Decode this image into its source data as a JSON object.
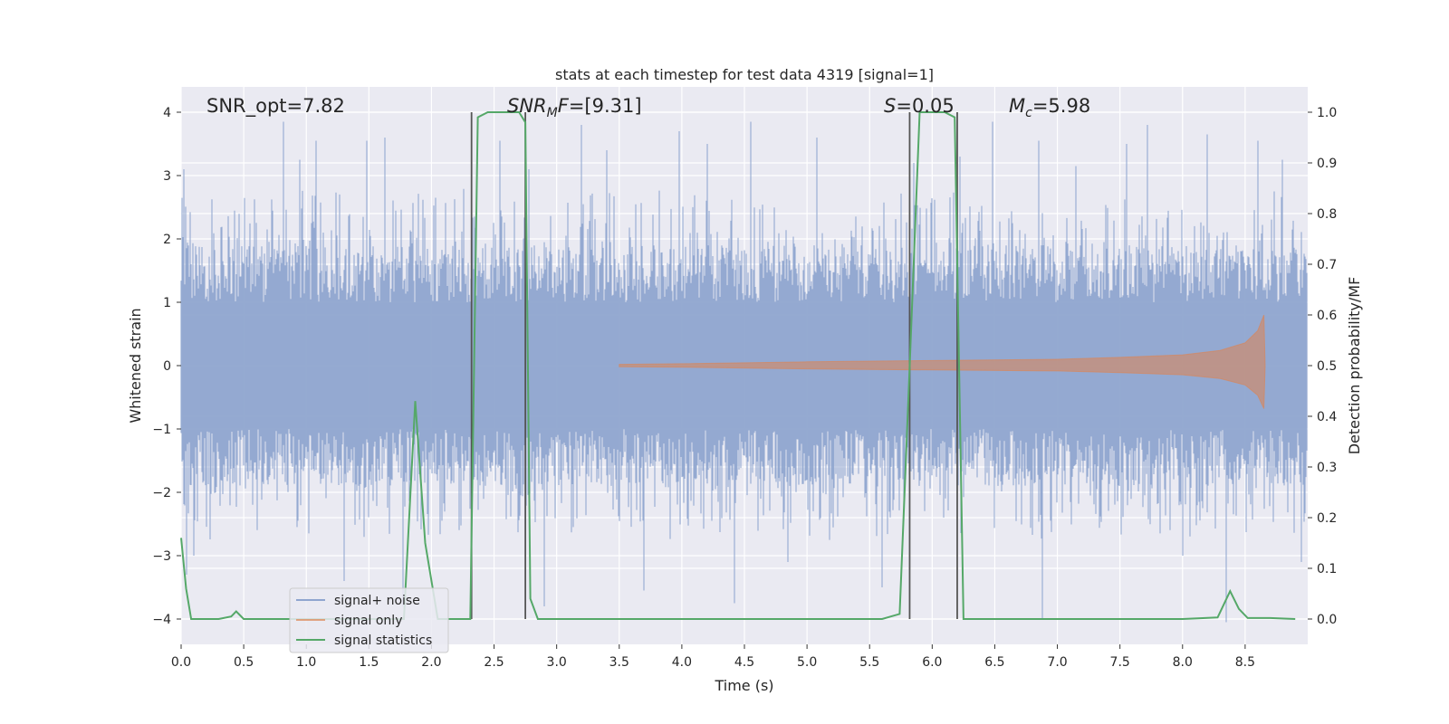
{
  "chart_data": {
    "type": "line",
    "title": "stats at each timestep for test data 4319 [signal=1]",
    "xlabel": "Time (s)",
    "ylabel": "Whitened strain",
    "ylabel_right": "Detection probability/MF",
    "xlim": [
      0.0,
      9.0
    ],
    "ylim": [
      -4.4,
      4.4
    ],
    "ylim_right": [
      -0.05,
      1.05
    ],
    "x_ticks": [
      "0.0",
      "0.5",
      "1.0",
      "1.5",
      "2.0",
      "2.5",
      "3.0",
      "3.5",
      "4.0",
      "4.5",
      "5.0",
      "5.5",
      "6.0",
      "6.5",
      "7.0",
      "7.5",
      "8.0",
      "8.5"
    ],
    "y_ticks": [
      "4",
      "3",
      "2",
      "1",
      "0",
      "−1",
      "−2",
      "−3",
      "−4"
    ],
    "y_ticks_right": [
      "1.0",
      "0.9",
      "0.8",
      "0.7",
      "0.6",
      "0.5",
      "0.4",
      "0.3",
      "0.2",
      "0.1",
      "0.0"
    ],
    "grid": true,
    "legend_position": "lower-left",
    "legend": [
      "signal+ noise",
      "signal only",
      "signal statistics"
    ],
    "colors": {
      "noise": "#8fa5cf",
      "signal": "#dd8452",
      "stats": "#55a868",
      "vline": "#555555",
      "plot_bg": "#eaeaf2",
      "grid": "#ffffff"
    },
    "annotations": {
      "snr_opt": "SNR_opt=7.82",
      "snr_mf_italic": "SNR",
      "snr_mf_sub": "M",
      "snr_mf_f": "F",
      "snr_mf_value": "=[9.31]",
      "s_italic": "S",
      "s_value": "=0.05",
      "mc_italic": "M",
      "mc_sub": "c",
      "mc_value": "=5.98"
    },
    "vertical_lines_x": [
      2.32,
      2.75,
      5.82,
      6.2
    ],
    "vertical_lines_range": [
      0.0,
      1.0
    ],
    "signal_statistics": {
      "x": [
        0.0,
        0.04,
        0.08,
        0.15,
        0.3,
        0.4,
        0.44,
        0.5,
        0.8,
        1.2,
        1.6,
        1.78,
        1.87,
        1.95,
        2.05,
        2.25,
        2.31,
        2.37,
        2.45,
        2.6,
        2.7,
        2.75,
        2.79,
        2.85,
        3.2,
        4.0,
        5.0,
        5.6,
        5.74,
        5.82,
        5.9,
        6.1,
        6.18,
        6.25,
        6.32,
        7.0,
        8.0,
        8.28,
        8.38,
        8.45,
        8.52,
        8.7,
        8.9
      ],
      "y": [
        0.16,
        0.06,
        0.0,
        0.0,
        0.0,
        0.005,
        0.015,
        0.0,
        0.0,
        0.0,
        0.0,
        0.0,
        0.43,
        0.15,
        0.0,
        0.0,
        0.0,
        0.99,
        1.0,
        1.0,
        1.0,
        0.98,
        0.04,
        0.0,
        0.0,
        0.0,
        0.0,
        0.0,
        0.01,
        0.5,
        1.0,
        1.0,
        0.99,
        0.0,
        0.0,
        0.0,
        0.0,
        0.003,
        0.055,
        0.02,
        0.002,
        0.002,
        0.0
      ]
    },
    "signal_only": {
      "x": [
        3.5,
        4.0,
        5.0,
        6.0,
        7.0,
        7.5,
        8.0,
        8.3,
        8.5,
        8.6,
        8.65,
        8.66
      ],
      "amplitude": [
        0.02,
        0.03,
        0.06,
        0.08,
        0.1,
        0.13,
        0.17,
        0.24,
        0.36,
        0.55,
        0.8,
        0.0
      ]
    },
    "signal_plus_noise": {
      "x_start": 0.0,
      "x_end": 8.99,
      "typical_envelope": [
        -1.6,
        1.6
      ],
      "peak_values": [
        [
          0.02,
          3.1
        ],
        [
          0.04,
          -3.3
        ],
        [
          0.1,
          -3.0
        ],
        [
          0.82,
          3.85
        ],
        [
          0.95,
          3.25
        ],
        [
          1.08,
          3.55
        ],
        [
          1.3,
          -3.4
        ],
        [
          1.48,
          3.55
        ],
        [
          1.63,
          3.6
        ],
        [
          1.77,
          -3.8
        ],
        [
          2.55,
          3.55
        ],
        [
          2.78,
          3.1
        ],
        [
          2.9,
          -3.8
        ],
        [
          3.2,
          3.8
        ],
        [
          3.4,
          3.4
        ],
        [
          3.7,
          -3.55
        ],
        [
          3.98,
          3.7
        ],
        [
          4.2,
          3.5
        ],
        [
          4.42,
          -3.75
        ],
        [
          4.55,
          3.85
        ],
        [
          4.85,
          -3.1
        ],
        [
          5.08,
          3.6
        ],
        [
          5.6,
          -3.5
        ],
        [
          5.85,
          3.2
        ],
        [
          6.22,
          3.3
        ],
        [
          6.48,
          3.85
        ],
        [
          6.85,
          3.55
        ],
        [
          6.88,
          -4.0
        ],
        [
          7.15,
          3.15
        ],
        [
          7.55,
          3.5
        ],
        [
          7.72,
          3.8
        ],
        [
          8.0,
          -3.0
        ],
        [
          8.2,
          3.65
        ],
        [
          8.35,
          -4.05
        ],
        [
          8.6,
          3.55
        ],
        [
          8.8,
          3.25
        ],
        [
          8.95,
          -3.1
        ]
      ]
    }
  }
}
